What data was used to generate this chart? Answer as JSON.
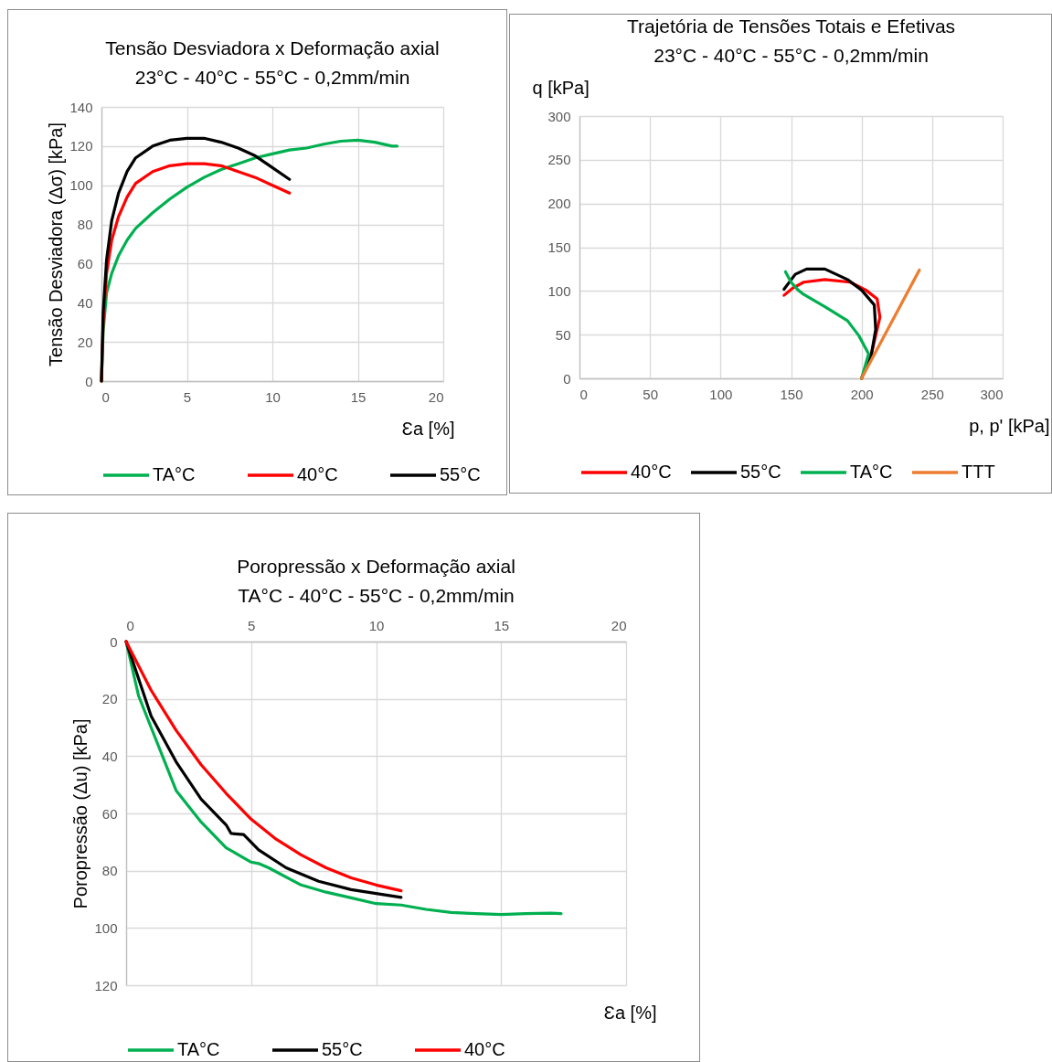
{
  "chart_data": [
    {
      "type": "line",
      "title": "Tensão Desviadora x Deformação axial",
      "subtitle": "23°C - 40°C - 55°C - 0,2mm/min",
      "xlabel": "Ɛa [%]",
      "ylabel": "Tensão Desviadora (Δσ) [kPa]",
      "xlim": [
        0,
        20
      ],
      "xticks": [
        0,
        5,
        10,
        15,
        20
      ],
      "ylim": [
        0,
        140
      ],
      "yticks": [
        0,
        20,
        40,
        60,
        80,
        100,
        120,
        140
      ],
      "grid": true,
      "legend": "bottom",
      "marker": "none",
      "line_style": "solid",
      "series": [
        {
          "name": "TA°C",
          "color": "#00b050",
          "x": [
            0,
            0.1,
            0.3,
            0.6,
            1,
            1.5,
            2,
            3,
            4,
            5,
            6,
            7,
            8,
            9,
            10,
            11,
            12,
            13,
            14,
            15,
            16,
            17,
            17.3
          ],
          "values": [
            0,
            25,
            45,
            55,
            64,
            72,
            78,
            86,
            93,
            99,
            104,
            108,
            111,
            114,
            116,
            118,
            119,
            121,
            122.5,
            123,
            122,
            120,
            120
          ]
        },
        {
          "name": "40°C",
          "color": "#ff0000",
          "x": [
            0,
            0.1,
            0.3,
            0.6,
            1,
            1.5,
            2,
            3,
            4,
            5,
            6,
            7,
            8,
            9,
            10,
            11
          ],
          "values": [
            0,
            30,
            55,
            72,
            84,
            94,
            101,
            107,
            110,
            111,
            111,
            110,
            107,
            104,
            100,
            96
          ]
        },
        {
          "name": "55°C",
          "color": "#000000",
          "x": [
            0,
            0.1,
            0.3,
            0.6,
            1,
            1.5,
            2,
            3,
            4,
            5,
            6,
            7,
            8,
            9,
            10,
            11
          ],
          "values": [
            0,
            35,
            62,
            82,
            96,
            107,
            114,
            120,
            123,
            124,
            124,
            122,
            119,
            115,
            109,
            103
          ]
        }
      ]
    },
    {
      "type": "line",
      "title": "Trajetória de Tensões Totais e Efetivas",
      "subtitle": "23°C - 40°C - 55°C - 0,2mm/min",
      "xlabel": "p, p' [kPa]",
      "ylabel": "q [kPa]",
      "xlim": [
        0,
        300
      ],
      "xticks": [
        0,
        50,
        100,
        150,
        200,
        250,
        300
      ],
      "ylim": [
        0,
        300
      ],
      "yticks": [
        0,
        50,
        100,
        150,
        200,
        250,
        300
      ],
      "grid": true,
      "legend": "bottom",
      "marker": "none",
      "line_style": "solid",
      "series": [
        {
          "name": "40°C",
          "color": "#ff0000",
          "x": [
            200,
            207,
            213,
            211,
            203,
            192,
            174,
            159,
            151,
            145
          ],
          "values": [
            0,
            28,
            70,
            91,
            101,
            110,
            113,
            110,
            103,
            95
          ]
        },
        {
          "name": "55°C",
          "color": "#000000",
          "x": [
            200,
            207,
            210,
            209,
            200,
            190,
            174,
            161,
            153,
            145
          ],
          "values": [
            0,
            28,
            56,
            84,
            101,
            113,
            125,
            125,
            119,
            102
          ]
        },
        {
          "name": "TA°C",
          "color": "#00b050",
          "x": [
            200,
            205,
            198,
            190,
            174,
            159,
            155,
            150,
            146
          ],
          "values": [
            0,
            28,
            49,
            66,
            82,
            96,
            101,
            110,
            122
          ]
        },
        {
          "name": "TTT",
          "color": "#ed7d31",
          "x": [
            200,
            241
          ],
          "values": [
            0,
            124
          ]
        }
      ]
    },
    {
      "type": "line",
      "title": "Poropressão  x  Deformação axial",
      "subtitle": "TA°C - 40°C - 55°C - 0,2mm/min",
      "xlabel": "Ɛa [%]",
      "ylabel": "Poropressão (Δu) [kPa]",
      "xlim": [
        0,
        20
      ],
      "xticks": [
        0,
        5,
        10,
        15,
        20
      ],
      "ylim": [
        120,
        0
      ],
      "yticks": [
        0,
        20,
        40,
        60,
        80,
        100,
        120
      ],
      "grid": true,
      "legend": "bottom",
      "marker": "none",
      "line_style": "solid",
      "series": [
        {
          "name": "TA°C",
          "color": "#00b050",
          "x": [
            0,
            0.5,
            1,
            2,
            3,
            4,
            5,
            5.3,
            5.7,
            7,
            8,
            9,
            10,
            11,
            12,
            13,
            14,
            15,
            16,
            17,
            17.4
          ],
          "values": [
            0,
            19,
            30,
            52,
            63,
            72,
            77,
            77.5,
            79,
            85,
            87.5,
            89.5,
            91.5,
            92,
            93.5,
            94.6,
            95,
            95.3,
            95,
            94.8,
            95
          ]
        },
        {
          "name": "55°C",
          "color": "#000000",
          "x": [
            0,
            1,
            2,
            3,
            4,
            4.2,
            4.7,
            5.3,
            6.4,
            7.7,
            9,
            11
          ],
          "values": [
            0,
            26,
            42,
            55,
            64,
            67,
            67.4,
            72.7,
            79,
            83.7,
            86.6,
            89.3
          ]
        },
        {
          "name": "40°C",
          "color": "#ff0000",
          "x": [
            0,
            1,
            2,
            3,
            4,
            5,
            6,
            7,
            8,
            9,
            10,
            11
          ],
          "values": [
            0,
            17,
            31,
            43,
            53,
            62,
            69,
            74.5,
            79,
            82.5,
            85,
            87
          ]
        }
      ]
    }
  ]
}
